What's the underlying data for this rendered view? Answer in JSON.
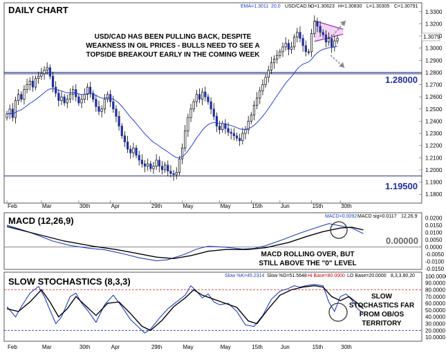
{
  "chart_data": [
    {
      "type": "candlestick",
      "title": "DAILY CHART",
      "instrument": "USD/CAD.fx",
      "ohlc_header": {
        "o": "O=1.30623",
        "h": "H=1.30830",
        "l": "L=1.30305",
        "c": "C=1.30791"
      },
      "ema_label": "EMA=1.3011",
      "ema_period": "20,0",
      "last_price_label": "1.3079",
      "ylim": [
        1.175,
        1.335
      ],
      "y_ticks": [
        "1.3300",
        "1.3200",
        "1.3100",
        "1.3000",
        "1.2900",
        "1.2800",
        "1.2700",
        "1.2600",
        "1.2500",
        "1.2400",
        "1.2300",
        "1.2200",
        "1.2100",
        "1.2000",
        "1.1900",
        "1.1800"
      ],
      "levels": [
        {
          "value": 1.28,
          "label": "1.28000"
        },
        {
          "value": 1.195,
          "label": "1.19500"
        }
      ],
      "annotation": [
        "USD/CAD HAS BEEN PULLING BACK, DESPITE",
        "WEAKNESS IN OIL PRICES - BULLS NEED TO SEE A",
        "TOPSIDE BREAKOUT EARLY IN THE COMING WEEK"
      ],
      "channel": {
        "upper": [
          [
            1.3225,
            1.3155
          ],
          [
            1.3055,
            1.3115
          ]
        ],
        "lower": [
          [
            1.32,
            1.3095
          ],
          [
            1.3,
            1.3055
          ]
        ]
      },
      "close": [
        1.246,
        1.25,
        1.243,
        1.257,
        1.262,
        1.258,
        1.266,
        1.27,
        1.273,
        1.268,
        1.275,
        1.277,
        1.279,
        1.282,
        1.284,
        1.277,
        1.268,
        1.263,
        1.257,
        1.26,
        1.255,
        1.258,
        1.262,
        1.266,
        1.26,
        1.255,
        1.258,
        1.262,
        1.268,
        1.263,
        1.258,
        1.252,
        1.248,
        1.25,
        1.258,
        1.262,
        1.256,
        1.25,
        1.244,
        1.236,
        1.228,
        1.223,
        1.217,
        1.214,
        1.218,
        1.212,
        1.208,
        1.205,
        1.203,
        1.205,
        1.201,
        1.203,
        1.208,
        1.203,
        1.2,
        1.204,
        1.199,
        1.197,
        1.196,
        1.198,
        1.209,
        1.218,
        1.232,
        1.243,
        1.25,
        1.256,
        1.262,
        1.258,
        1.264,
        1.26,
        1.256,
        1.25,
        1.244,
        1.236,
        1.233,
        1.238,
        1.234,
        1.231,
        1.23,
        1.228,
        1.226,
        1.224,
        1.23,
        1.233,
        1.24,
        1.245,
        1.253,
        1.259,
        1.265,
        1.27,
        1.276,
        1.282,
        1.288,
        1.291,
        1.294,
        1.297,
        1.301,
        1.304,
        1.299,
        1.301,
        1.309,
        1.313,
        1.308,
        1.302,
        1.297,
        1.297,
        1.312,
        1.322,
        1.318,
        1.313,
        1.311,
        1.305,
        1.308,
        1.301,
        1.306,
        1.308
      ],
      "x_labels": [
        {
          "label": "Feb",
          "i": 0
        },
        {
          "label": "Mar",
          "i": 12
        },
        {
          "label": "30th",
          "i": 25
        },
        {
          "label": "Apr",
          "i": 36
        },
        {
          "label": "29th",
          "i": 50
        },
        {
          "label": "May",
          "i": 61
        },
        {
          "label": "May",
          "i": 74
        },
        {
          "label": "15th",
          "i": 85
        },
        {
          "label": "Jun",
          "i": 95
        },
        {
          "label": "15th",
          "i": 106
        },
        {
          "label": "30th",
          "i": 116
        }
      ]
    },
    {
      "type": "line",
      "title": "MACD (12,26,9)",
      "info": {
        "macd": "MACD=0.0092",
        "sig": "MACD sig=0.0117",
        "params": "12,26,9"
      },
      "ylim": [
        -0.015,
        0.023
      ],
      "y_ticks": [
        "0.0200",
        "0.0150",
        "0.0100",
        "0.0050",
        "0.0000",
        "-0.0050",
        "-0.0100",
        "-0.0150"
      ],
      "zero_label": "0.00000",
      "annotation": [
        "MACD ROLLING OVER, BUT",
        "STILL ABOVE THE \"0\" LEVEL"
      ],
      "series": [
        {
          "values": [
            [
              0,
              0.015
            ],
            [
              8,
              0.01
            ],
            [
              16,
              0.004
            ],
            [
              22,
              0.001
            ],
            [
              28,
              -0.0008
            ],
            [
              34,
              -0.002
            ],
            [
              40,
              -0.0045
            ],
            [
              46,
              -0.0075
            ],
            [
              52,
              -0.0095
            ],
            [
              56,
              -0.0088
            ],
            [
              62,
              -0.005
            ],
            [
              66,
              -0.0015
            ],
            [
              70,
              0.0005
            ],
            [
              76,
              -0.0002
            ],
            [
              82,
              -0.0015
            ],
            [
              86,
              -0.001
            ],
            [
              90,
              0.0008
            ],
            [
              96,
              0.005
            ],
            [
              102,
              0.0095
            ],
            [
              108,
              0.0135
            ],
            [
              112,
              0.016
            ],
            [
              116,
              0.0145
            ],
            [
              120,
              0.013
            ],
            [
              124,
              0.0092
            ]
          ],
          "color": "#1f3fbf"
        },
        {
          "values": [
            [
              0,
              0.014
            ],
            [
              10,
              0.009
            ],
            [
              20,
              0.004
            ],
            [
              30,
              0.0005
            ],
            [
              38,
              -0.0018
            ],
            [
              44,
              -0.004
            ],
            [
              52,
              -0.007
            ],
            [
              58,
              -0.008
            ],
            [
              64,
              -0.006
            ],
            [
              70,
              -0.003
            ],
            [
              76,
              -0.0018
            ],
            [
              84,
              -0.0018
            ],
            [
              90,
              -0.0005
            ],
            [
              98,
              0.003
            ],
            [
              104,
              0.007
            ],
            [
              110,
              0.0105
            ],
            [
              116,
              0.013
            ],
            [
              120,
              0.0135
            ],
            [
              124,
              0.0117
            ]
          ],
          "color": "#000000"
        }
      ]
    },
    {
      "type": "line",
      "title": "SLOW STOCHASTICS (8,3,3)",
      "info": {
        "k": "Slow %K=45.2314",
        "d": "Slow %D=51.5648",
        "hi": "Hi Base=80.0000",
        "lo": "LO Base=20.0000",
        "params": "8,3,3,80,20"
      },
      "ylim": [
        5,
        105
      ],
      "y_ticks": [
        "100.0000",
        "90.0000",
        "80.0000",
        "70.0000",
        "60.0000",
        "50.0000",
        "40.0000",
        "30.0000",
        "20.0000",
        "10.0000"
      ],
      "levels": [
        {
          "value": 80
        },
        {
          "value": 20
        }
      ],
      "annotation": [
        "SLOW",
        "STOCHASTICS FAR",
        "FROM OB/OS",
        "TERRITORY"
      ],
      "series": [
        {
          "values": [
            [
              0,
              55
            ],
            [
              3,
              40
            ],
            [
              5,
              55
            ],
            [
              8,
              75
            ],
            [
              11,
              85
            ],
            [
              13,
              70
            ],
            [
              15,
              50
            ],
            [
              17,
              30
            ],
            [
              19,
              40
            ],
            [
              22,
              70
            ],
            [
              24,
              75
            ],
            [
              26,
              60
            ],
            [
              28,
              50
            ],
            [
              31,
              32
            ],
            [
              34,
              58
            ],
            [
              37,
              72
            ],
            [
              40,
              55
            ],
            [
              43,
              36
            ],
            [
              46,
              24
            ],
            [
              48,
              16
            ],
            [
              50,
              22
            ],
            [
              53,
              38
            ],
            [
              56,
              52
            ],
            [
              59,
              62
            ],
            [
              62,
              72
            ],
            [
              64,
              86
            ],
            [
              66,
              78
            ],
            [
              68,
              68
            ],
            [
              70,
              74
            ],
            [
              72,
              62
            ],
            [
              74,
              58
            ],
            [
              77,
              60
            ],
            [
              80,
              48
            ],
            [
              83,
              28
            ],
            [
              86,
              26
            ],
            [
              89,
              42
            ],
            [
              92,
              66
            ],
            [
              95,
              78
            ],
            [
              98,
              82
            ],
            [
              100,
              86
            ],
            [
              102,
              84
            ],
            [
              104,
              86
            ],
            [
              107,
              88
            ],
            [
              110,
              86
            ],
            [
              112,
              62
            ],
            [
              114,
              48
            ],
            [
              116,
              70
            ],
            [
              118,
              74
            ],
            [
              120,
              65
            ],
            [
              122,
              52
            ],
            [
              124,
              45
            ]
          ],
          "color": "#1f3fbf"
        },
        {
          "values": [
            [
              0,
              52
            ],
            [
              4,
              48
            ],
            [
              8,
              62
            ],
            [
              12,
              80
            ],
            [
              15,
              62
            ],
            [
              18,
              40
            ],
            [
              21,
              52
            ],
            [
              24,
              70
            ],
            [
              27,
              58
            ],
            [
              31,
              42
            ],
            [
              35,
              60
            ],
            [
              39,
              62
            ],
            [
              43,
              45
            ],
            [
              47,
              26
            ],
            [
              50,
              20
            ],
            [
              54,
              35
            ],
            [
              58,
              55
            ],
            [
              62,
              68
            ],
            [
              65,
              80
            ],
            [
              68,
              72
            ],
            [
              72,
              66
            ],
            [
              76,
              60
            ],
            [
              80,
              54
            ],
            [
              84,
              34
            ],
            [
              87,
              30
            ],
            [
              91,
              52
            ],
            [
              95,
              72
            ],
            [
              99,
              80
            ],
            [
              103,
              84
            ],
            [
              107,
              86
            ],
            [
              110,
              84
            ],
            [
              113,
              70
            ],
            [
              116,
              64
            ],
            [
              119,
              70
            ],
            [
              122,
              60
            ],
            [
              124,
              52
            ]
          ],
          "color": "#000000"
        }
      ]
    }
  ]
}
